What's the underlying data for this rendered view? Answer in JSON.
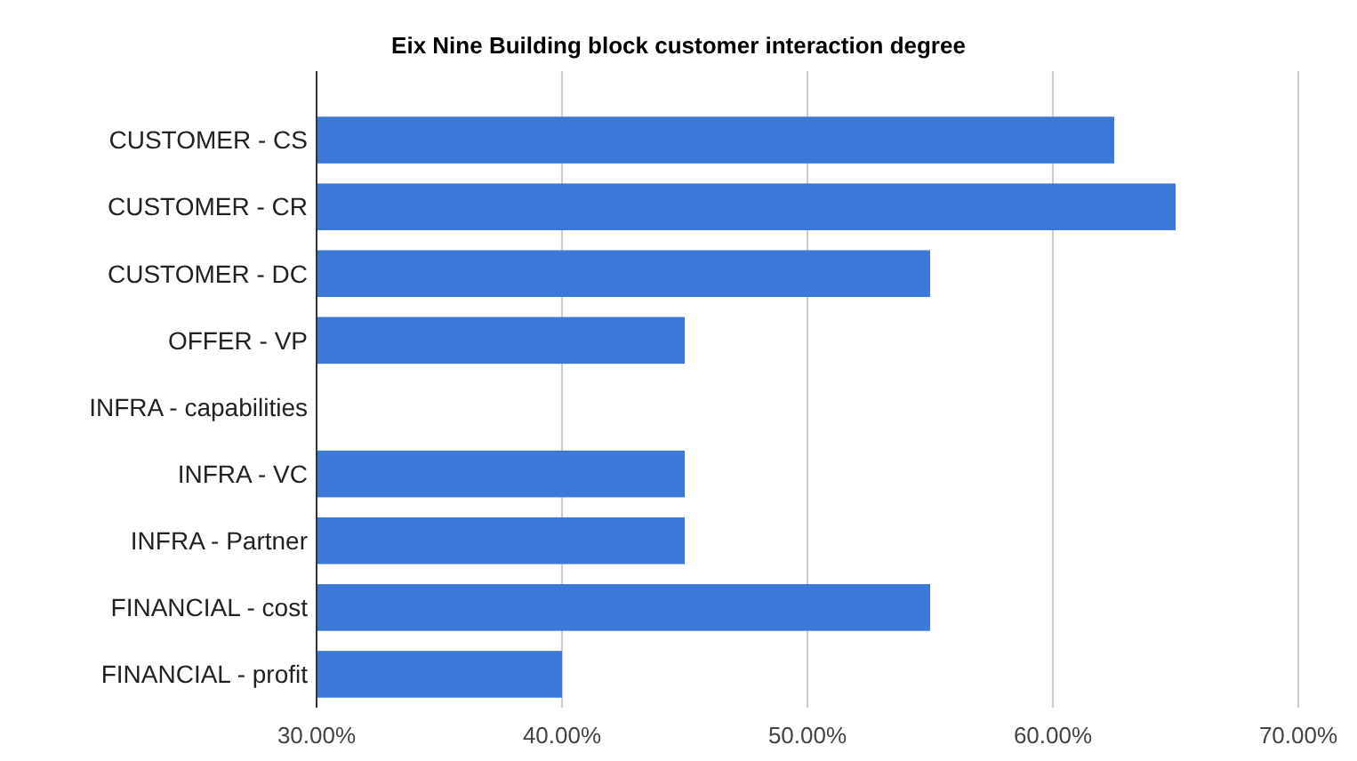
{
  "chart_data": {
    "type": "bar",
    "orientation": "horizontal",
    "title": "Eix Nine Building block customer interaction degree",
    "categories": [
      "CUSTOMER - CS",
      "CUSTOMER - CR",
      "CUSTOMER - DC",
      "OFFER - VP",
      "INFRA - capabilities",
      "INFRA - VC",
      "INFRA - Partner",
      "FINANCIAL - cost",
      "FINANCIAL - profit"
    ],
    "values": [
      62.5,
      65,
      55,
      45,
      30,
      45,
      45,
      55,
      40
    ],
    "color": "#3c78d8",
    "xlim": [
      30,
      70
    ],
    "xticks": [
      {
        "value": 30,
        "label": "30.00%"
      },
      {
        "value": 40,
        "label": "40.00%"
      },
      {
        "value": 50,
        "label": "50.00%"
      },
      {
        "value": 60,
        "label": "60.00%"
      },
      {
        "value": 70,
        "label": "70.00%"
      }
    ],
    "grid": "x"
  }
}
